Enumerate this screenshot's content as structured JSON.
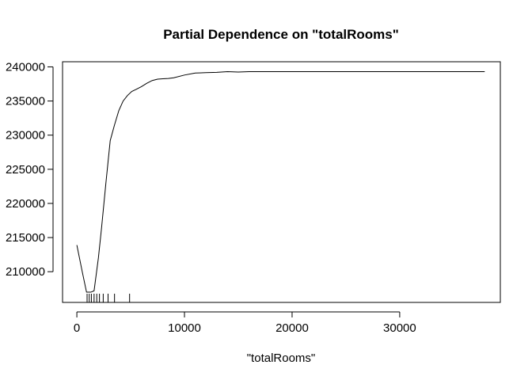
{
  "chart_data": {
    "type": "line",
    "title": "Partial Dependence on \"totalRooms\"",
    "xlabel": "\"totalRooms\"",
    "ylabel": "",
    "xlim": [
      -1330,
      39350
    ],
    "ylim": [
      205500,
      240750
    ],
    "x_ticks": [
      0,
      10000,
      20000,
      30000
    ],
    "y_ticks": [
      210000,
      215000,
      220000,
      225000,
      230000,
      235000,
      240000
    ],
    "grid": false,
    "legend": "none",
    "series": [
      {
        "x": [
          0,
          500,
          900,
          1300,
          1600,
          2000,
          2300,
          2700,
          3100,
          3500,
          3900,
          4300,
          4700,
          5100,
          5500,
          6000,
          6500,
          7000,
          7500,
          8000,
          8500,
          9000,
          10000,
          11000,
          12000,
          13000,
          14000,
          15000,
          16000,
          17000,
          18000,
          20000,
          25000,
          30000,
          35000,
          37900
        ],
        "y": [
          213900,
          210000,
          207000,
          207000,
          207200,
          212000,
          216500,
          223000,
          229200,
          231500,
          233600,
          235000,
          235800,
          236400,
          236700,
          237100,
          237600,
          238000,
          238200,
          238250,
          238300,
          238400,
          238800,
          239100,
          239150,
          239200,
          239300,
          239250,
          239300,
          239300,
          239300,
          239300,
          239300,
          239300,
          239300,
          239300
        ]
      }
    ],
    "rug_x": [
      950,
      1150,
      1350,
      1600,
      1850,
      2100,
      2450,
      2900,
      3500,
      4900
    ]
  }
}
